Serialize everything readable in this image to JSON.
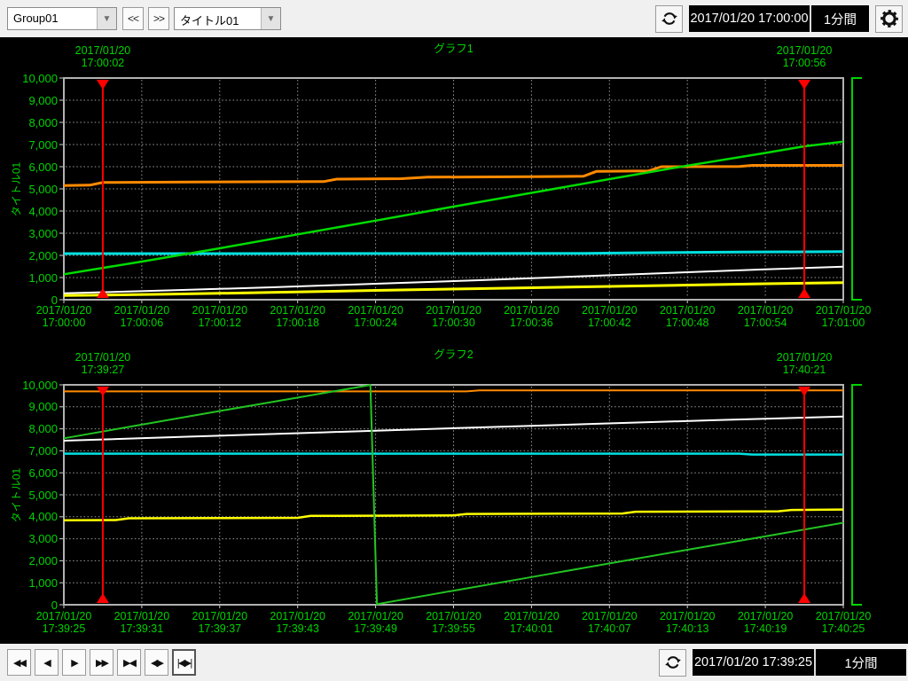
{
  "app": {
    "background_color": "#f0f0f0",
    "chart_background_color": "#000000",
    "label_color": "#00d400",
    "cursor_color": "#ff0000",
    "grid_color": "#9b9b9b",
    "border_color": "#b2b2b2"
  },
  "toolbar_top": {
    "group_select": {
      "value": "Group01"
    },
    "back_button_label": "<<",
    "forward_button_label": ">>",
    "title_select": {
      "value": "タイトル01"
    },
    "timestamp": "2017/01/20 17:00:00",
    "interval_label": "1分間"
  },
  "toolbar_bottom": {
    "playback_buttons": [
      {
        "name": "fast-rewind-button",
        "glyph": "◀◀"
      },
      {
        "name": "step-back-button",
        "glyph": "◀"
      },
      {
        "name": "step-forward-button",
        "glyph": "▶"
      },
      {
        "name": "fast-forward-button",
        "glyph": "▶▶"
      },
      {
        "name": "cursors-inward-button",
        "glyph": "▶◀"
      },
      {
        "name": "cursors-outward-button",
        "glyph": "◀▶"
      },
      {
        "name": "cursors-to-edges-button",
        "glyph": "|◀▶|"
      }
    ],
    "timestamp": "2017/01/20 17:39:25",
    "interval_label": "1分間"
  },
  "chart_data": [
    {
      "type": "line",
      "title": "グラフ1",
      "ylabel": "タイトル01",
      "ylim": [
        0,
        10000
      ],
      "ytick_step": 1000,
      "ytick_labels": [
        "10,000",
        "9,000",
        "8,000",
        "7,000",
        "6,000",
        "5,000",
        "4,000",
        "3,000",
        "2,000",
        "1,000",
        "0"
      ],
      "x_span_seconds": 60,
      "grid": true,
      "legend_position": "none",
      "xticks": [
        {
          "date": "2017/01/20",
          "time": "17:00:00"
        },
        {
          "date": "2017/01/20",
          "time": "17:00:06"
        },
        {
          "date": "2017/01/20",
          "time": "17:00:12"
        },
        {
          "date": "2017/01/20",
          "time": "17:00:18"
        },
        {
          "date": "2017/01/20",
          "time": "17:00:24"
        },
        {
          "date": "2017/01/20",
          "time": "17:00:30"
        },
        {
          "date": "2017/01/20",
          "time": "17:00:36"
        },
        {
          "date": "2017/01/20",
          "time": "17:00:42"
        },
        {
          "date": "2017/01/20",
          "time": "17:00:48"
        },
        {
          "date": "2017/01/20",
          "time": "17:00:54"
        },
        {
          "date": "2017/01/20",
          "time": "17:01:00"
        }
      ],
      "cursors": [
        {
          "date": "2017/01/20",
          "time": "17:00:02",
          "frac": 0.05
        },
        {
          "date": "2017/01/20",
          "time": "17:00:56",
          "frac": 0.95
        }
      ],
      "series": [
        {
          "name": "orange",
          "color": "#ff8a00",
          "width": 3,
          "points": [
            [
              0,
              5150
            ],
            [
              2,
              5170
            ],
            [
              3,
              5290
            ],
            [
              10,
              5310
            ],
            [
              20,
              5330
            ],
            [
              21,
              5440
            ],
            [
              26,
              5460
            ],
            [
              28,
              5530
            ],
            [
              36,
              5550
            ],
            [
              40,
              5570
            ],
            [
              41,
              5790
            ],
            [
              45,
              5810
            ],
            [
              46,
              6000
            ],
            [
              52,
              6010
            ],
            [
              53,
              6060
            ],
            [
              60,
              6060
            ]
          ]
        },
        {
          "name": "white",
          "color": "#ffffff",
          "width": 2,
          "points": [
            [
              0,
              290
            ],
            [
              8,
              420
            ],
            [
              16,
              560
            ],
            [
              24,
              720
            ],
            [
              32,
              880
            ],
            [
              40,
              1060
            ],
            [
              48,
              1240
            ],
            [
              54,
              1370
            ],
            [
              60,
              1490
            ]
          ]
        },
        {
          "name": "cyan",
          "color": "#00e0e0",
          "width": 3,
          "points": [
            [
              0,
              2080
            ],
            [
              40,
              2090
            ],
            [
              45,
              2120
            ],
            [
              52,
              2150
            ],
            [
              60,
              2170
            ]
          ]
        },
        {
          "name": "yellow",
          "color": "#ffff00",
          "width": 3,
          "points": [
            [
              0,
              190
            ],
            [
              8,
              250
            ],
            [
              16,
              330
            ],
            [
              24,
              420
            ],
            [
              32,
              500
            ],
            [
              40,
              580
            ],
            [
              48,
              660
            ],
            [
              54,
              720
            ],
            [
              60,
              770
            ]
          ]
        },
        {
          "name": "green",
          "color": "#00dc00",
          "width": 2.5,
          "points": [
            [
              0,
              1150
            ],
            [
              6,
              1720
            ],
            [
              12,
              2320
            ],
            [
              18,
              2950
            ],
            [
              24,
              3570
            ],
            [
              30,
              4200
            ],
            [
              36,
              4820
            ],
            [
              42,
              5440
            ],
            [
              48,
              6050
            ],
            [
              54,
              6620
            ],
            [
              57,
              6920
            ],
            [
              60,
              7130
            ]
          ]
        }
      ]
    },
    {
      "type": "line",
      "title": "グラフ2",
      "ylabel": "タイトル01",
      "ylim": [
        0,
        10000
      ],
      "ytick_step": 1000,
      "ytick_labels": [
        "10,000",
        "9,000",
        "8,000",
        "7,000",
        "6,000",
        "5,000",
        "4,000",
        "3,000",
        "2,000",
        "1,000",
        "0"
      ],
      "x_span_seconds": 60,
      "grid": true,
      "legend_position": "none",
      "xticks": [
        {
          "date": "2017/01/20",
          "time": "17:39:25"
        },
        {
          "date": "2017/01/20",
          "time": "17:39:31"
        },
        {
          "date": "2017/01/20",
          "time": "17:39:37"
        },
        {
          "date": "2017/01/20",
          "time": "17:39:43"
        },
        {
          "date": "2017/01/20",
          "time": "17:39:49"
        },
        {
          "date": "2017/01/20",
          "time": "17:39:55"
        },
        {
          "date": "2017/01/20",
          "time": "17:40:01"
        },
        {
          "date": "2017/01/20",
          "time": "17:40:07"
        },
        {
          "date": "2017/01/20",
          "time": "17:40:13"
        },
        {
          "date": "2017/01/20",
          "time": "17:40:19"
        },
        {
          "date": "2017/01/20",
          "time": "17:40:25"
        }
      ],
      "cursors": [
        {
          "date": "2017/01/20",
          "time": "17:39:27",
          "frac": 0.05
        },
        {
          "date": "2017/01/20",
          "time": "17:40:21",
          "frac": 0.95
        }
      ],
      "series": [
        {
          "name": "orange",
          "color": "#ff8a00",
          "width": 2,
          "points": [
            [
              0,
              9700
            ],
            [
              31,
              9700
            ],
            [
              32,
              9750
            ],
            [
              60,
              9750
            ]
          ]
        },
        {
          "name": "white",
          "color": "#ffffff",
          "width": 2,
          "points": [
            [
              0,
              7460
            ],
            [
              10,
              7650
            ],
            [
              20,
              7840
            ],
            [
              30,
              8030
            ],
            [
              40,
              8210
            ],
            [
              50,
              8390
            ],
            [
              60,
              8560
            ]
          ]
        },
        {
          "name": "cyan",
          "color": "#00e0e0",
          "width": 2.5,
          "points": [
            [
              0,
              6870
            ],
            [
              52,
              6870
            ],
            [
              53,
              6830
            ],
            [
              60,
              6830
            ]
          ]
        },
        {
          "name": "yellow",
          "color": "#ffff00",
          "width": 2.5,
          "points": [
            [
              0,
              3840
            ],
            [
              4,
              3850
            ],
            [
              5,
              3930
            ],
            [
              18,
              3950
            ],
            [
              19,
              4040
            ],
            [
              30,
              4060
            ],
            [
              31,
              4130
            ],
            [
              43,
              4150
            ],
            [
              44,
              4230
            ],
            [
              55,
              4250
            ],
            [
              56,
              4310
            ],
            [
              60,
              4330
            ]
          ]
        },
        {
          "name": "green",
          "color": "#22c422",
          "width": 2,
          "points": [
            [
              0,
              7570
            ],
            [
              6,
              8190
            ],
            [
              12,
              8810
            ],
            [
              18,
              9420
            ],
            [
              23,
              9930
            ],
            [
              23.6,
              9990
            ],
            [
              24.1,
              30
            ],
            [
              30,
              640
            ],
            [
              36,
              1260
            ],
            [
              42,
              1880
            ],
            [
              48,
              2500
            ],
            [
              54,
              3110
            ],
            [
              60,
              3730
            ]
          ]
        }
      ]
    }
  ]
}
